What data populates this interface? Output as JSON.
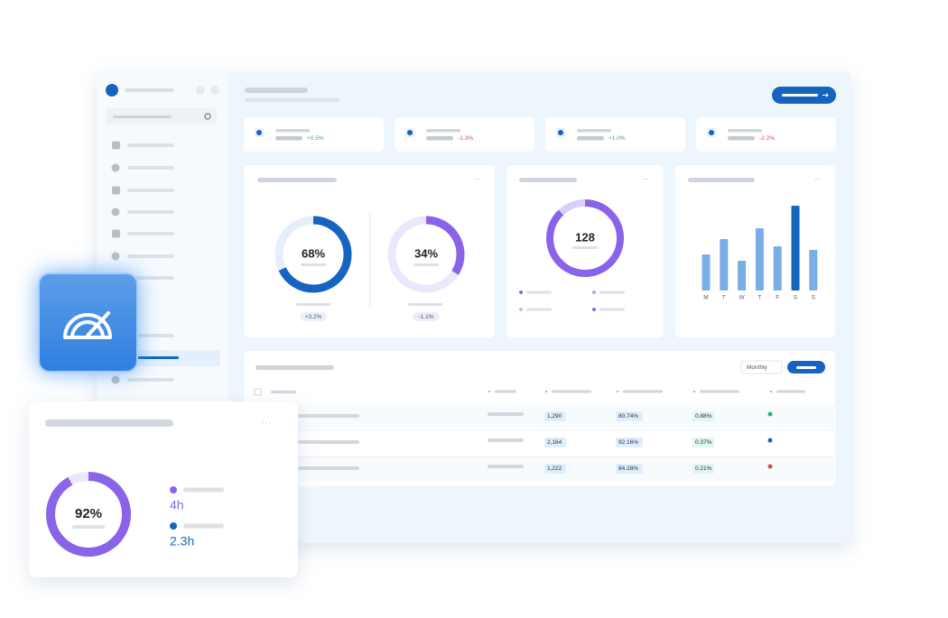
{
  "stats": [
    {
      "delta": "+0.5%"
    },
    {
      "delta": "-1.3%"
    },
    {
      "delta": "+1.0%"
    },
    {
      "delta": "-2.2%"
    }
  ],
  "donut_a": {
    "label": "68%",
    "value": 68,
    "delta": "+3.2%"
  },
  "donut_b": {
    "label": "34%",
    "value": 34,
    "delta": "-1.1%"
  },
  "ring": {
    "label": "128",
    "value": 88
  },
  "weekly": {
    "categories": [
      "M",
      "T",
      "W",
      "T",
      "F",
      "S",
      "S"
    ],
    "values": [
      40,
      57,
      33,
      69,
      49,
      94,
      45
    ],
    "colors": [
      "#7aaee6",
      "#7aaee6",
      "#7aaee6",
      "#7aaee6",
      "#7aaee6",
      "#1565c0",
      "#7aaee6"
    ],
    "ylim": [
      0,
      100
    ]
  },
  "table": {
    "filter": "Monthly",
    "rows": [
      [
        "1,290",
        "80.74%",
        "0.88%"
      ],
      [
        "2,164",
        "92.16%",
        "0.37%"
      ],
      [
        "1,222",
        "84.28%",
        "0.21%"
      ]
    ]
  },
  "focus": {
    "label": "92%",
    "value": 92,
    "items": [
      {
        "value": "4h"
      },
      {
        "value": "2.3h"
      }
    ]
  }
}
